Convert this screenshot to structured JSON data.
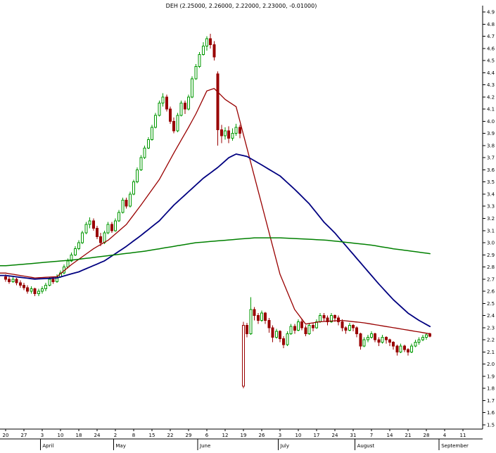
{
  "chart_data": {
    "type": "candlestick",
    "title": "DEH (2.25000, 2.26000, 2.22000, 2.23000, -0.01000)",
    "symbol": "DEH",
    "last_quote": {
      "open": "2.25000",
      "high": "2.26000",
      "low": "2.22000",
      "close": "2.23000",
      "change": "-0.01000"
    },
    "ylim": [
      1.5,
      4.9
    ],
    "y_tick_step": 0.1,
    "y_tick_labels": [
      "4.9",
      "4.8",
      "4.7",
      "4.6",
      "4.5",
      "4.4",
      "4.3",
      "4.2",
      "4.1",
      "4.0",
      "3.9",
      "3.8",
      "3.7",
      "3.6",
      "3.5",
      "3.4",
      "3.3",
      "3.2",
      "3.1",
      "3.0",
      "2.9",
      "2.8",
      "2.7",
      "2.6",
      "2.5",
      "2.4",
      "2.3",
      "2.2",
      "2.1",
      "2.0",
      "1.9",
      "1.8",
      "1.7",
      "1.6",
      "1.5"
    ],
    "grid": "off",
    "legend": "none",
    "colors": {
      "up": "#009900",
      "down": "#990000",
      "ma_fast": "#990000",
      "ma_medium": "#000080",
      "ma_slow": "#008000"
    },
    "candles": [
      [
        2.72,
        2.74,
        2.68,
        2.7
      ],
      [
        2.7,
        2.72,
        2.66,
        2.68
      ],
      [
        2.68,
        2.72,
        2.67,
        2.7
      ],
      [
        2.7,
        2.71,
        2.65,
        2.67
      ],
      [
        2.67,
        2.69,
        2.63,
        2.65
      ],
      [
        2.65,
        2.67,
        2.61,
        2.63
      ],
      [
        2.63,
        2.65,
        2.58,
        2.6
      ],
      [
        2.6,
        2.64,
        2.58,
        2.62
      ],
      [
        2.62,
        2.63,
        2.56,
        2.58
      ],
      [
        2.58,
        2.62,
        2.56,
        2.6
      ],
      [
        2.6,
        2.64,
        2.58,
        2.62
      ],
      [
        2.62,
        2.67,
        2.6,
        2.65
      ],
      [
        2.65,
        2.72,
        2.64,
        2.7
      ],
      [
        2.7,
        2.72,
        2.66,
        2.68
      ],
      [
        2.68,
        2.74,
        2.67,
        2.72
      ],
      [
        2.72,
        2.77,
        2.71,
        2.75
      ],
      [
        2.75,
        2.82,
        2.74,
        2.8
      ],
      [
        2.8,
        2.87,
        2.79,
        2.85
      ],
      [
        2.85,
        2.92,
        2.84,
        2.9
      ],
      [
        2.9,
        2.97,
        2.89,
        2.95
      ],
      [
        2.95,
        3.02,
        2.94,
        3.0
      ],
      [
        3.0,
        3.1,
        2.99,
        3.08
      ],
      [
        3.08,
        3.17,
        3.07,
        3.15
      ],
      [
        3.15,
        3.21,
        3.12,
        3.18
      ],
      [
        3.18,
        3.2,
        3.1,
        3.12
      ],
      [
        3.12,
        3.14,
        3.03,
        3.05
      ],
      [
        3.05,
        3.08,
        2.97,
        3.0
      ],
      [
        3.0,
        3.1,
        2.99,
        3.08
      ],
      [
        3.08,
        3.17,
        3.07,
        3.15
      ],
      [
        3.15,
        3.17,
        3.08,
        3.1
      ],
      [
        3.1,
        3.2,
        3.09,
        3.18
      ],
      [
        3.18,
        3.27,
        3.17,
        3.25
      ],
      [
        3.25,
        3.37,
        3.24,
        3.35
      ],
      [
        3.35,
        3.37,
        3.28,
        3.3
      ],
      [
        3.3,
        3.42,
        3.29,
        3.4
      ],
      [
        3.4,
        3.52,
        3.39,
        3.5
      ],
      [
        3.5,
        3.62,
        3.49,
        3.6
      ],
      [
        3.6,
        3.72,
        3.59,
        3.7
      ],
      [
        3.7,
        3.8,
        3.69,
        3.78
      ],
      [
        3.78,
        3.87,
        3.77,
        3.85
      ],
      [
        3.85,
        3.97,
        3.84,
        3.95
      ],
      [
        3.95,
        4.07,
        3.94,
        4.05
      ],
      [
        4.05,
        4.17,
        4.04,
        4.15
      ],
      [
        4.15,
        4.23,
        4.12,
        4.2
      ],
      [
        4.2,
        4.22,
        4.08,
        4.1
      ],
      [
        4.1,
        4.12,
        3.98,
        4.0
      ],
      [
        4.0,
        4.03,
        3.9,
        3.92
      ],
      [
        3.92,
        4.07,
        3.91,
        4.05
      ],
      [
        4.05,
        4.17,
        4.04,
        4.15
      ],
      [
        4.15,
        4.17,
        4.06,
        4.1
      ],
      [
        4.1,
        4.22,
        4.09,
        4.2
      ],
      [
        4.2,
        4.37,
        4.19,
        4.35
      ],
      [
        4.35,
        4.47,
        4.34,
        4.45
      ],
      [
        4.45,
        4.57,
        4.44,
        4.55
      ],
      [
        4.55,
        4.65,
        4.54,
        4.62
      ],
      [
        4.62,
        4.7,
        4.58,
        4.68
      ],
      [
        4.68,
        4.72,
        4.6,
        4.63
      ],
      [
        4.63,
        4.66,
        4.5,
        4.53
      ],
      [
        4.39,
        4.41,
        3.8,
        3.93
      ],
      [
        3.93,
        3.97,
        3.82,
        3.88
      ],
      [
        3.88,
        3.95,
        3.85,
        3.92
      ],
      [
        3.92,
        3.96,
        3.82,
        3.86
      ],
      [
        3.86,
        3.94,
        3.84,
        3.9
      ],
      [
        3.9,
        3.98,
        3.88,
        3.95
      ],
      [
        3.95,
        3.97,
        3.86,
        3.9
      ],
      [
        1.82,
        2.35,
        1.8,
        2.32
      ],
      [
        2.32,
        2.34,
        2.22,
        2.25
      ],
      [
        2.25,
        2.55,
        2.24,
        2.45
      ],
      [
        2.45,
        2.47,
        2.36,
        2.4
      ],
      [
        2.4,
        2.42,
        2.33,
        2.36
      ],
      [
        2.36,
        2.44,
        2.35,
        2.42
      ],
      [
        2.42,
        2.43,
        2.33,
        2.36
      ],
      [
        2.36,
        2.38,
        2.26,
        2.3
      ],
      [
        2.3,
        2.32,
        2.18,
        2.22
      ],
      [
        2.22,
        2.29,
        2.21,
        2.27
      ],
      [
        2.27,
        2.28,
        2.18,
        2.21
      ],
      [
        2.21,
        2.23,
        2.13,
        2.16
      ],
      [
        2.16,
        2.27,
        2.15,
        2.25
      ],
      [
        2.25,
        2.33,
        2.24,
        2.31
      ],
      [
        2.31,
        2.33,
        2.25,
        2.28
      ],
      [
        2.28,
        2.37,
        2.27,
        2.35
      ],
      [
        2.35,
        2.37,
        2.28,
        2.3
      ],
      [
        2.3,
        2.32,
        2.23,
        2.25
      ],
      [
        2.25,
        2.34,
        2.24,
        2.32
      ],
      [
        2.32,
        2.34,
        2.27,
        2.3
      ],
      [
        2.3,
        2.37,
        2.29,
        2.35
      ],
      [
        2.35,
        2.42,
        2.34,
        2.4
      ],
      [
        2.4,
        2.42,
        2.35,
        2.38
      ],
      [
        2.38,
        2.4,
        2.32,
        2.35
      ],
      [
        2.35,
        2.42,
        2.34,
        2.4
      ],
      [
        2.4,
        2.41,
        2.35,
        2.38
      ],
      [
        2.38,
        2.4,
        2.32,
        2.35
      ],
      [
        2.35,
        2.37,
        2.27,
        2.3
      ],
      [
        2.3,
        2.31,
        2.25,
        2.28
      ],
      [
        2.28,
        2.34,
        2.27,
        2.32
      ],
      [
        2.32,
        2.33,
        2.27,
        2.3
      ],
      [
        2.3,
        2.31,
        2.22,
        2.25
      ],
      [
        2.25,
        2.26,
        2.12,
        2.15
      ],
      [
        2.15,
        2.22,
        2.14,
        2.2
      ],
      [
        2.2,
        2.24,
        2.18,
        2.22
      ],
      [
        2.22,
        2.27,
        2.21,
        2.25
      ],
      [
        2.25,
        2.26,
        2.18,
        2.2
      ],
      [
        2.2,
        2.22,
        2.15,
        2.18
      ],
      [
        2.18,
        2.24,
        2.17,
        2.22
      ],
      [
        2.22,
        2.23,
        2.17,
        2.2
      ],
      [
        2.2,
        2.21,
        2.15,
        2.18
      ],
      [
        2.18,
        2.19,
        2.12,
        2.15
      ],
      [
        2.15,
        2.16,
        2.07,
        2.1
      ],
      [
        2.1,
        2.17,
        2.09,
        2.15
      ],
      [
        2.15,
        2.16,
        2.1,
        2.12
      ],
      [
        2.12,
        2.13,
        2.07,
        2.1
      ],
      [
        2.1,
        2.17,
        2.09,
        2.15
      ],
      [
        2.15,
        2.2,
        2.14,
        2.18
      ],
      [
        2.18,
        2.22,
        2.16,
        2.2
      ],
      [
        2.2,
        2.24,
        2.19,
        2.22
      ],
      [
        2.22,
        2.26,
        2.2,
        2.24
      ],
      [
        2.25,
        2.26,
        2.22,
        2.23
      ]
    ],
    "ma_series": [
      {
        "name": "ma-fast-red",
        "color": "#990000",
        "width": 1.3,
        "points": [
          [
            0,
            2.75
          ],
          [
            8,
            2.71
          ],
          [
            14,
            2.72
          ],
          [
            18,
            2.82
          ],
          [
            24,
            2.95
          ],
          [
            28,
            3.02
          ],
          [
            33,
            3.15
          ],
          [
            37,
            3.31
          ],
          [
            42,
            3.52
          ],
          [
            46,
            3.74
          ],
          [
            50,
            3.95
          ],
          [
            52,
            4.06
          ],
          [
            55,
            4.25
          ],
          [
            57,
            4.27
          ],
          [
            60,
            4.18
          ],
          [
            63,
            4.12
          ],
          [
            67,
            3.66
          ],
          [
            71,
            3.2
          ],
          [
            75,
            2.74
          ],
          [
            79,
            2.45
          ],
          [
            82,
            2.33
          ],
          [
            86,
            2.35
          ],
          [
            92,
            2.36
          ],
          [
            98,
            2.34
          ],
          [
            104,
            2.31
          ],
          [
            110,
            2.28
          ],
          [
            116,
            2.25
          ]
        ]
      },
      {
        "name": "ma-medium-blue",
        "color": "#000080",
        "width": 1.8,
        "points": [
          [
            0,
            2.73
          ],
          [
            8,
            2.7
          ],
          [
            14,
            2.71
          ],
          [
            20,
            2.76
          ],
          [
            27,
            2.85
          ],
          [
            33,
            2.97
          ],
          [
            37,
            3.06
          ],
          [
            42,
            3.18
          ],
          [
            46,
            3.31
          ],
          [
            50,
            3.42
          ],
          [
            54,
            3.53
          ],
          [
            58,
            3.62
          ],
          [
            61,
            3.7
          ],
          [
            63,
            3.73
          ],
          [
            66,
            3.71
          ],
          [
            70,
            3.64
          ],
          [
            75,
            3.55
          ],
          [
            79,
            3.44
          ],
          [
            83,
            3.32
          ],
          [
            87,
            3.17
          ],
          [
            90,
            3.08
          ],
          [
            94,
            2.94
          ],
          [
            98,
            2.8
          ],
          [
            102,
            2.66
          ],
          [
            106,
            2.53
          ],
          [
            110,
            2.42
          ],
          [
            113,
            2.36
          ],
          [
            116,
            2.31
          ]
        ]
      },
      {
        "name": "ma-slow-green",
        "color": "#008000",
        "width": 1.5,
        "points": [
          [
            0,
            2.81
          ],
          [
            19,
            2.86
          ],
          [
            38,
            2.93
          ],
          [
            52,
            3.0
          ],
          [
            60,
            3.02
          ],
          [
            68,
            3.04
          ],
          [
            75,
            3.04
          ],
          [
            82,
            3.03
          ],
          [
            88,
            3.02
          ],
          [
            94,
            3.0
          ],
          [
            100,
            2.98
          ],
          [
            106,
            2.95
          ],
          [
            111,
            2.93
          ],
          [
            116,
            2.91
          ]
        ]
      }
    ],
    "x_axis": {
      "week_labels": [
        "20",
        "27",
        "3",
        "10",
        "18",
        "24",
        "2",
        "8",
        "15",
        "22",
        "29",
        "6",
        "12",
        "19",
        "26",
        "3",
        "10",
        "17",
        "24",
        "31",
        "7",
        "14",
        "21",
        "28",
        "4",
        "11"
      ],
      "months": [
        {
          "label": "April",
          "start_day": 10
        },
        {
          "label": "May",
          "start_day": 30
        },
        {
          "label": "June",
          "start_day": 53
        },
        {
          "label": "July",
          "start_day": 75
        },
        {
          "label": "August",
          "start_day": 96
        },
        {
          "label": "September",
          "start_day": 119
        }
      ]
    }
  }
}
